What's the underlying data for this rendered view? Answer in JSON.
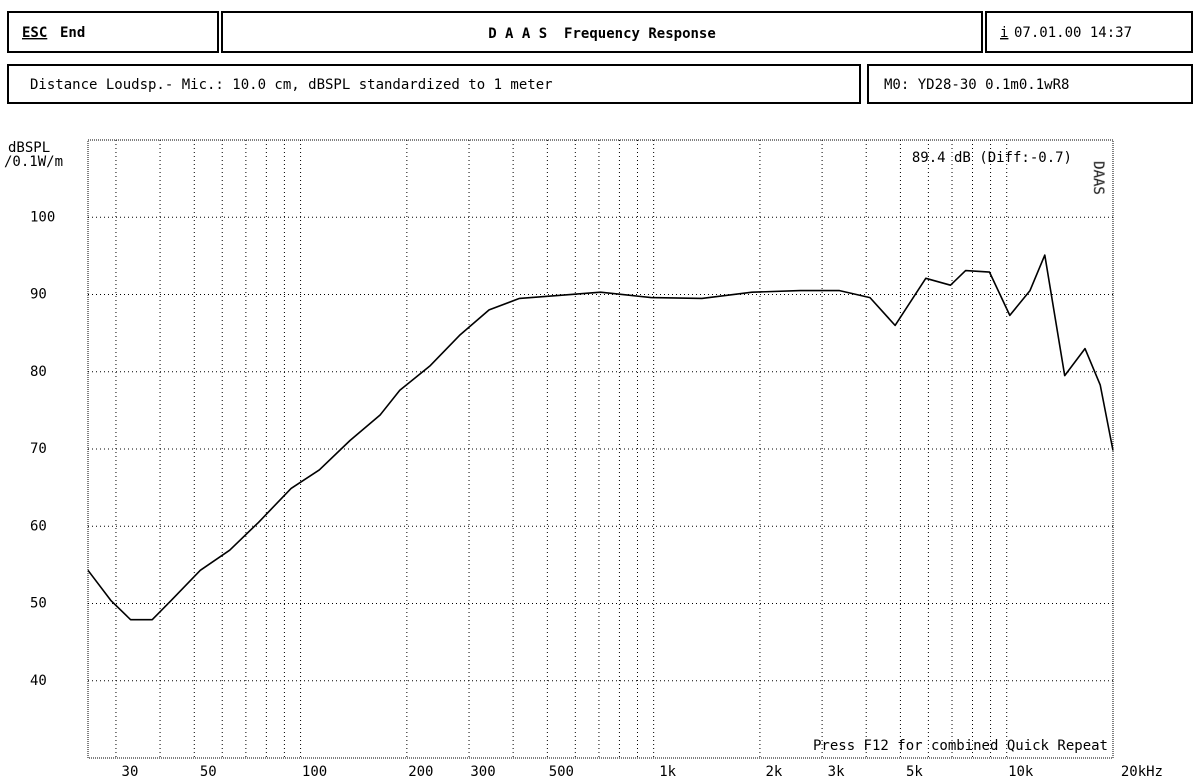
{
  "header": {
    "esc_key": "ESC",
    "esc_label": "End",
    "title": "D A A S  Frequency Response",
    "info_key": "i",
    "datetime": "07.01.00 14:37",
    "subtitle": "Distance Loudsp.- Mic.: 10.0 cm, dBSPL standardized to 1 meter",
    "measurement": "M0: YD28-30 0.1m0.1wR8"
  },
  "chart_data": {
    "type": "line",
    "y_label_1": "dBSPL",
    "y_label_2": "/0.1W/m",
    "annotation": "89.4 dB (Diff:-0.7)",
    "footer": "Press F12 for combined Quick Repeat",
    "logo": "DAAS",
    "x": [
      25,
      29,
      33,
      38,
      43,
      52,
      63,
      76,
      94,
      113,
      138,
      168,
      191,
      233,
      282,
      342,
      417,
      544,
      707,
      984,
      1370,
      1900,
      2600,
      3360,
      4100,
      4830,
      5900,
      6930,
      7650,
      8940,
      10200,
      11640,
      12820,
      14600,
      16660,
      18400,
      20000
    ],
    "series": [
      {
        "name": "M0",
        "color": "#000000",
        "values": [
          54.3,
          50.4,
          47.9,
          47.9,
          50.4,
          54.3,
          56.9,
          60.5,
          64.9,
          67.3,
          71.1,
          74.4,
          77.6,
          80.8,
          84.7,
          88,
          89.5,
          89.9,
          90.3,
          89.6,
          89.5,
          90.3,
          90.5,
          90.5,
          89.6,
          86,
          92.1,
          91.2,
          93.1,
          92.9,
          87.3,
          90.5,
          95.1,
          79.5,
          83,
          78.3,
          69.8
        ]
      }
    ],
    "xscale": "log",
    "xlim": [
      25,
      20000
    ],
    "xticks": [
      30,
      50,
      100,
      200,
      300,
      500,
      {
        "value": 1000,
        "label": "1k"
      },
      {
        "value": 2000,
        "label": "2k"
      },
      {
        "value": 3000,
        "label": "3k"
      },
      {
        "value": 5000,
        "label": "5k"
      },
      {
        "value": 10000,
        "label": "10k"
      },
      {
        "value": 20000,
        "label": "20kHz"
      }
    ],
    "xminor": [
      40,
      60,
      70,
      80,
      90,
      400,
      600,
      700,
      800,
      900,
      4000,
      6000,
      7000,
      8000,
      9000
    ],
    "ylim": [
      30,
      110
    ],
    "yticks": [
      40,
      50,
      60,
      70,
      80,
      90,
      100
    ],
    "grid": true
  }
}
